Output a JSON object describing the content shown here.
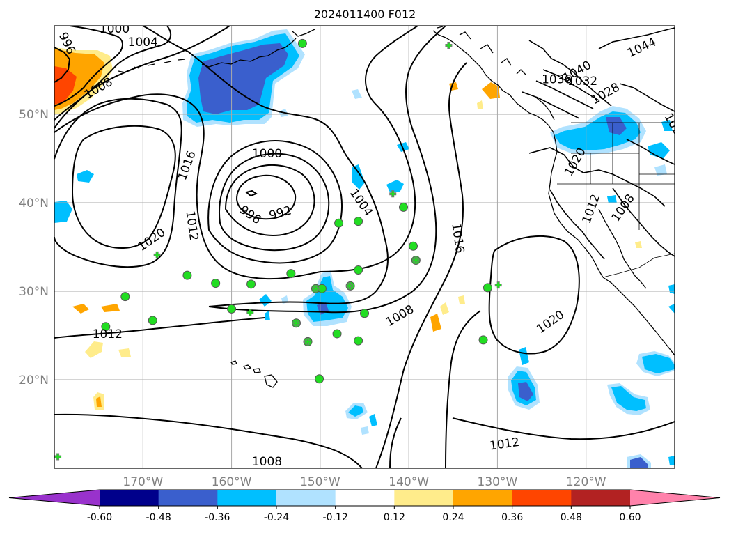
{
  "title": "2024011400 F012",
  "map": {
    "lon_range": [
      -180,
      -110
    ],
    "lat_range": [
      10,
      60
    ],
    "meridians": [
      -170,
      -160,
      -150,
      -140,
      -130,
      -120
    ],
    "parallels": [
      20,
      30,
      40,
      50
    ],
    "lon_labels": [
      "170°W",
      "160°W",
      "150°W",
      "140°W",
      "130°W",
      "120°W"
    ],
    "lat_labels": [
      "20°N",
      "30°N",
      "40°N",
      "50°N"
    ]
  },
  "contour_labels": [
    {
      "text": "996",
      "lon": -178.6,
      "lat": 58.0,
      "rot": 65
    },
    {
      "text": "1000",
      "lon": -173.2,
      "lat": 59.6,
      "rot": 0
    },
    {
      "text": "1004",
      "lon": -170.0,
      "lat": 58.1,
      "rot": 0
    },
    {
      "text": "1008",
      "lon": -175.0,
      "lat": 52.9,
      "rot": -30
    },
    {
      "text": "1016",
      "lon": -165.0,
      "lat": 44.2,
      "rot": -70
    },
    {
      "text": "1020",
      "lon": -169.0,
      "lat": 35.8,
      "rot": -35
    },
    {
      "text": "1012",
      "lon": -164.5,
      "lat": 37.4,
      "rot": 82
    },
    {
      "text": "1000",
      "lon": -156.0,
      "lat": 45.5,
      "rot": 0
    },
    {
      "text": "996",
      "lon": -157.9,
      "lat": 38.6,
      "rot": 35
    },
    {
      "text": "992",
      "lon": -154.5,
      "lat": 38.8,
      "rot": -15
    },
    {
      "text": "1004",
      "lon": -145.4,
      "lat": 40.0,
      "rot": 55
    },
    {
      "text": "1016",
      "lon": -134.5,
      "lat": 36.0,
      "rot": 82
    },
    {
      "text": "1008",
      "lon": -141.0,
      "lat": 27.2,
      "rot": -30
    },
    {
      "text": "1020",
      "lon": -124.0,
      "lat": 26.5,
      "rot": -35
    },
    {
      "text": "1012",
      "lon": -174.0,
      "lat": 25.1,
      "rot": 0
    },
    {
      "text": "1012",
      "lon": -129.2,
      "lat": 12.7,
      "rot": -8
    },
    {
      "text": "1008",
      "lon": -156.0,
      "lat": 10.7,
      "rot": 0
    },
    {
      "text": "1044",
      "lon": -113.7,
      "lat": 57.5,
      "rot": -25
    },
    {
      "text": "1040",
      "lon": -121.0,
      "lat": 54.8,
      "rot": -30
    },
    {
      "text": "1036",
      "lon": -123.3,
      "lat": 53.9,
      "rot": 0
    },
    {
      "text": "1032",
      "lon": -120.4,
      "lat": 53.7,
      "rot": 0
    },
    {
      "text": "1028",
      "lon": -117.8,
      "lat": 52.3,
      "rot": -30
    },
    {
      "text": "1024",
      "lon": -110.0,
      "lat": 48.5,
      "rot": 60
    },
    {
      "text": "1020",
      "lon": -121.2,
      "lat": 44.6,
      "rot": -60
    },
    {
      "text": "1012",
      "lon": -119.4,
      "lat": 39.3,
      "rot": -70
    },
    {
      "text": "1008",
      "lon": -115.8,
      "lat": 39.4,
      "rot": -55
    }
  ],
  "stations": [
    [
      -152.0,
      58.0
    ],
    [
      -165.0,
      31.8
    ],
    [
      -161.8,
      30.9
    ],
    [
      -157.8,
      30.8
    ],
    [
      -153.3,
      32.0
    ],
    [
      -172.0,
      29.4
    ],
    [
      -174.2,
      26.0
    ],
    [
      -168.9,
      26.7
    ],
    [
      -160.0,
      28.0
    ],
    [
      -150.5,
      30.3
    ],
    [
      -149.8,
      30.3
    ],
    [
      -146.6,
      30.6
    ],
    [
      -145.7,
      32.4
    ],
    [
      -145.7,
      37.9
    ],
    [
      -147.9,
      37.7
    ],
    [
      -140.6,
      39.5
    ],
    [
      -139.5,
      35.1
    ],
    [
      -139.2,
      33.5
    ],
    [
      -145.0,
      27.5
    ],
    [
      -148.1,
      25.2
    ],
    [
      -145.7,
      24.4
    ],
    [
      -150.1,
      20.1
    ],
    [
      -151.4,
      24.3
    ],
    [
      -152.7,
      26.4
    ],
    [
      -131.1,
      30.4
    ],
    [
      -131.6,
      24.5
    ]
  ],
  "crosses": [
    [
      -135.5,
      57.8
    ],
    [
      -141.8,
      41.0
    ],
    [
      -168.4,
      34.1
    ],
    [
      -157.9,
      27.6
    ],
    [
      -146.7,
      30.6
    ],
    [
      -129.9,
      30.7
    ],
    [
      -179.6,
      11.3
    ],
    [
      -152.7,
      26.4
    ],
    [
      -151.4,
      24.3
    ],
    [
      -150.5,
      30.3
    ],
    [
      -139.2,
      33.5
    ]
  ],
  "colorbar": {
    "ticks": [
      "-0.60",
      "-0.48",
      "-0.36",
      "-0.24",
      "-0.12",
      "0.12",
      "0.24",
      "0.36",
      "0.48",
      "0.60"
    ],
    "colors": [
      "#9932cc",
      "#00008b",
      "#3a5fcd",
      "#00bfff",
      "#b0e2ff",
      "#ffffff",
      "#ffec8b",
      "#ffa500",
      "#ff4500",
      "#b22222",
      "#ff82ab"
    ]
  },
  "colors": {
    "grid": "#a9a9a9",
    "station_marker": "#22dd22",
    "label_grey": "#808080"
  }
}
